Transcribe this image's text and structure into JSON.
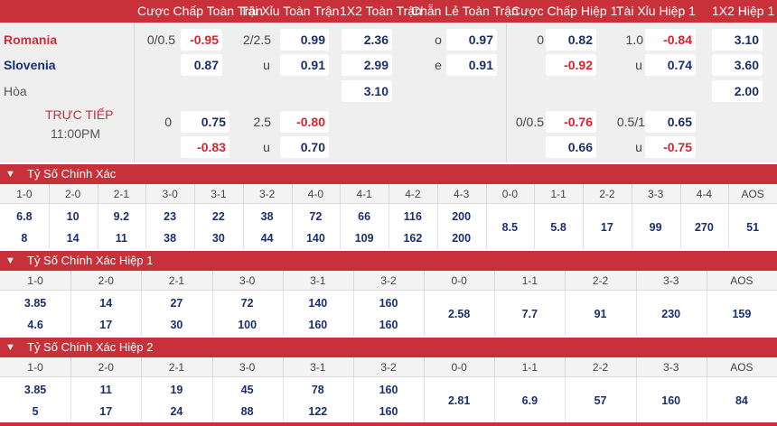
{
  "header": {
    "hcp_ft": "Cược Chấp Toàn Trận",
    "ou_ft": "Tài Xỉu Toàn Trận",
    "x12_ft": "1X2 Toàn Trận",
    "oe_ft": "Chẵn Lẻ Toàn Trận",
    "hcp_ht": "Cược Chấp Hiệp 1",
    "ou_ht": "Tài Xỉu Hiệp 1",
    "x12_ht": "1X2 Hiệp 1"
  },
  "match": {
    "home": "Romania",
    "away": "Slovenia",
    "draw": "Hòa",
    "live": "TRỰC TIẾP",
    "time": "11:00PM",
    "row1": {
      "hcp": "0/0.5",
      "hcp_odd": "-0.95",
      "ou": "2/2.5",
      "ou_odd": "0.99",
      "x12": "2.36",
      "oe_label": "o",
      "oe_odd": "0.97",
      "hcp_h": "0",
      "hcp_h_odd": "0.82",
      "ou_h": "1.0",
      "ou_h_odd": "-0.84",
      "x12_h": "3.10"
    },
    "row2": {
      "hcp_odd": "0.87",
      "ou_label": "u",
      "ou_odd": "0.91",
      "x12": "2.99",
      "oe_label": "e",
      "oe_odd": "0.91",
      "hcp_h_odd": "-0.92",
      "ou_h_label": "u",
      "ou_h_odd": "0.74",
      "x12_h": "3.60"
    },
    "row3": {
      "x12": "3.10",
      "x12_h": "2.00"
    },
    "row4": {
      "hcp": "0",
      "hcp_odd": "0.75",
      "ou": "2.5",
      "ou_odd": "-0.80",
      "hcp_h": "0/0.5",
      "hcp_h_odd": "-0.76",
      "ou_h": "0.5/1",
      "ou_h_odd": "0.65"
    },
    "row5": {
      "hcp_odd": "-0.83",
      "ou_label": "u",
      "ou_odd": "0.70",
      "hcp_h_odd": "0.66",
      "ou_h_label": "u",
      "ou_h_odd": "-0.75"
    }
  },
  "sections": [
    {
      "title": "Tỷ Số Chính Xác",
      "cols": [
        "1-0",
        "2-0",
        "2-1",
        "3-0",
        "3-1",
        "3-2",
        "4-0",
        "4-1",
        "4-2",
        "4-3",
        "0-0",
        "1-1",
        "2-2",
        "3-3",
        "4-4",
        "AOS"
      ],
      "row1": [
        "6.8",
        "10",
        "9.2",
        "23",
        "22",
        "38",
        "72",
        "66",
        "116",
        "200"
      ],
      "row2": [
        "8",
        "14",
        "11",
        "38",
        "30",
        "44",
        "140",
        "109",
        "162",
        "200"
      ],
      "mid": [
        "8.5",
        "5.8",
        "17",
        "99",
        "270",
        "51"
      ]
    },
    {
      "title": "Tỷ Số Chính Xác Hiệp 1",
      "cols": [
        "1-0",
        "2-0",
        "2-1",
        "3-0",
        "3-1",
        "3-2",
        "0-0",
        "1-1",
        "2-2",
        "3-3",
        "AOS"
      ],
      "row1": [
        "3.85",
        "14",
        "27",
        "72",
        "140",
        "160"
      ],
      "row2": [
        "4.6",
        "17",
        "30",
        "100",
        "160",
        "160"
      ],
      "mid": [
        "2.58",
        "7.7",
        "91",
        "230",
        "159"
      ]
    },
    {
      "title": "Tỷ Số Chính Xác Hiệp 2",
      "cols": [
        "1-0",
        "2-0",
        "2-1",
        "3-0",
        "3-1",
        "3-2",
        "0-0",
        "1-1",
        "2-2",
        "3-3",
        "AOS"
      ],
      "row1": [
        "3.85",
        "11",
        "19",
        "45",
        "78",
        "160"
      ],
      "row2": [
        "5",
        "17",
        "24",
        "88",
        "122",
        "160"
      ],
      "mid": [
        "2.81",
        "6.9",
        "57",
        "160",
        "84"
      ]
    }
  ],
  "icons": {
    "collapse": "chevron-down-icon"
  },
  "colors": {
    "accent": "#c8303a",
    "blue_odd": "#1b2f6e",
    "red_odd": "#e0202a"
  }
}
